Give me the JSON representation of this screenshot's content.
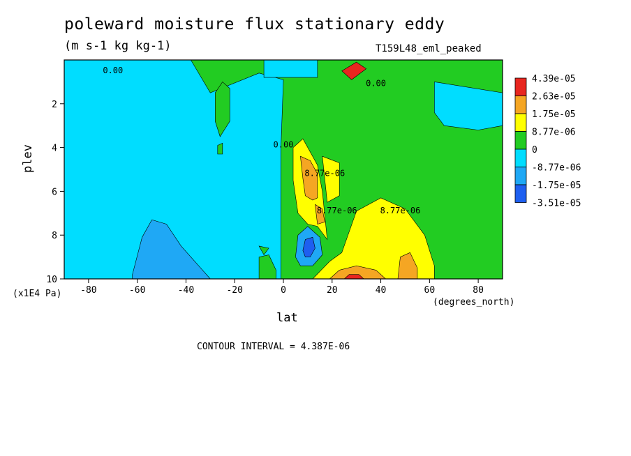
{
  "title": "poleward moisture flux stationary eddy",
  "units": "(m s-1 kg kg-1)",
  "dataset": "T159L48_eml_peaked",
  "contour_interval": "CONTOUR INTERVAL = 4.387E-06",
  "chart_data": {
    "type": "heatmap",
    "xlabel": "lat",
    "x_units": "(degrees_north)",
    "ylabel": "plev",
    "y_units": "(x1E4 Pa)",
    "xlim": [
      -90,
      90
    ],
    "ylim": [
      10,
      0
    ],
    "x_ticks": [
      -80,
      -60,
      -40,
      -20,
      0,
      20,
      40,
      60,
      80
    ],
    "y_ticks": [
      2,
      4,
      6,
      8,
      10
    ],
    "colorbar": {
      "labels": [
        "4.39e-05",
        "2.63e-05",
        "1.75e-05",
        "8.77e-06",
        "0",
        "-8.77e-06",
        "-1.75e-05",
        "-3.51e-05"
      ],
      "colors": [
        "#e8261f",
        "#f5a623",
        "#ffff00",
        "#22cc22",
        "#00ddff",
        "#1fa8f5",
        "#1e5ff0"
      ]
    },
    "contour_labels": [
      {
        "text": "0.00",
        "lat": -70,
        "plev": 0.6
      },
      {
        "text": "0.00",
        "lat": 38,
        "plev": 1.2
      },
      {
        "text": "0.00",
        "lat": 0,
        "plev": 4.0
      },
      {
        "text": "8.77e-06",
        "lat": 17,
        "plev": 5.3
      },
      {
        "text": "8.77e-06",
        "lat": 22,
        "plev": 7.0
      },
      {
        "text": "8.77e-06",
        "lat": 48,
        "plev": 7.0
      }
    ],
    "regions": [
      {
        "level": "-8.77e-06",
        "color": "#00ddff",
        "poly": [
          [
            -90,
            10
          ],
          [
            -90,
            0
          ],
          [
            -38,
            0
          ],
          [
            -30,
            1.5
          ],
          [
            -10,
            0.6
          ],
          [
            0,
            0.9
          ],
          [
            -1,
            4
          ],
          [
            -1,
            10
          ]
        ]
      },
      {
        "level": "-8.77e-06",
        "color": "#00ddff",
        "poly": [
          [
            62,
            1
          ],
          [
            90,
            1.5
          ],
          [
            90,
            3.0
          ],
          [
            80,
            3.2
          ],
          [
            66,
            3.0
          ],
          [
            62,
            2.4
          ]
        ]
      },
      {
        "level": "-8.77e-06",
        "color": "#00ddff",
        "poly": [
          [
            -8,
            0
          ],
          [
            14,
            0
          ],
          [
            14,
            0.8
          ],
          [
            -8,
            0.8
          ]
        ]
      },
      {
        "level": "-1.75e-05",
        "color": "#1fa8f5",
        "poly": [
          [
            -62,
            9.8
          ],
          [
            -58,
            8.1
          ],
          [
            -54,
            7.3
          ],
          [
            -48,
            7.5
          ],
          [
            -42,
            8.5
          ],
          [
            -34,
            9.5
          ],
          [
            -30,
            10
          ],
          [
            -62,
            10
          ]
        ]
      },
      {
        "level": "-1.75e-05",
        "color": "#1fa8f5",
        "poly": [
          [
            5,
            9.0
          ],
          [
            6,
            8.0
          ],
          [
            10,
            7.6
          ],
          [
            15,
            8.1
          ],
          [
            16,
            8.9
          ],
          [
            12,
            9.4
          ],
          [
            7,
            9.4
          ]
        ]
      },
      {
        "level": "-3.51e-05",
        "color": "#1e5ff0",
        "poly": [
          [
            8,
            8.7
          ],
          [
            9,
            8.2
          ],
          [
            12,
            8.1
          ],
          [
            13,
            8.6
          ],
          [
            11,
            9.0
          ],
          [
            9,
            9.0
          ]
        ]
      },
      {
        "level": "8.77e-06",
        "color": "#ffff00",
        "poly": [
          [
            4,
            4.0
          ],
          [
            8,
            3.6
          ],
          [
            14,
            4.8
          ],
          [
            16,
            6.0
          ],
          [
            18,
            8.2
          ],
          [
            14,
            7.6
          ],
          [
            10,
            7.5
          ],
          [
            6,
            7.0
          ],
          [
            4,
            5.5
          ]
        ]
      },
      {
        "level": "8.77e-06",
        "color": "#ffff00",
        "poly": [
          [
            16,
            4.4
          ],
          [
            23,
            4.7
          ],
          [
            23,
            6.2
          ],
          [
            18,
            6.5
          ]
        ]
      },
      {
        "level": "8.77e-06",
        "color": "#ffff00",
        "poly": [
          [
            12,
            10
          ],
          [
            19,
            9.2
          ],
          [
            24,
            8.8
          ],
          [
            30,
            6.9
          ],
          [
            40,
            6.3
          ],
          [
            50,
            6.8
          ],
          [
            58,
            8.0
          ],
          [
            62,
            9.4
          ],
          [
            62,
            10
          ]
        ]
      },
      {
        "level": "1.75e-05",
        "color": "#f5a623",
        "poly": [
          [
            7,
            4.4
          ],
          [
            11,
            4.6
          ],
          [
            14,
            5.2
          ],
          [
            14,
            6.3
          ],
          [
            12,
            6.4
          ],
          [
            9,
            6.2
          ],
          [
            8,
            5.4
          ]
        ]
      },
      {
        "level": "1.75e-05",
        "color": "#f5a623",
        "poly": [
          [
            13,
            6.6
          ],
          [
            16,
            6.8
          ],
          [
            17,
            7.4
          ],
          [
            14,
            7.5
          ]
        ]
      },
      {
        "level": "1.75e-05",
        "color": "#f5a623",
        "poly": [
          [
            47,
            10
          ],
          [
            48,
            9.0
          ],
          [
            52,
            8.8
          ],
          [
            55,
            9.5
          ],
          [
            55,
            10
          ]
        ]
      },
      {
        "level": "1.75e-05",
        "color": "#f5a623",
        "poly": [
          [
            19,
            10
          ],
          [
            23,
            9.6
          ],
          [
            30,
            9.4
          ],
          [
            38,
            9.6
          ],
          [
            42,
            10
          ]
        ]
      },
      {
        "level": "4.39e-05",
        "color": "#e8261f",
        "poly": [
          [
            25,
            10
          ],
          [
            27,
            9.8
          ],
          [
            31,
            9.8
          ],
          [
            33,
            10
          ]
        ]
      },
      {
        "level": "4.39e-05",
        "color": "#e8261f",
        "poly": [
          [
            24,
            0.5
          ],
          [
            30,
            0.1
          ],
          [
            34,
            0.4
          ],
          [
            28,
            0.9
          ]
        ]
      },
      {
        "level": "0",
        "color": "#22cc22",
        "poly": [
          [
            -28,
            1.5
          ],
          [
            -25,
            1.0
          ],
          [
            -22,
            1.3
          ],
          [
            -22,
            2.8
          ],
          [
            -26,
            3.5
          ],
          [
            -28,
            2.8
          ]
        ]
      },
      {
        "level": "0",
        "color": "#22cc22",
        "poly": [
          [
            -27,
            3.9
          ],
          [
            -25,
            3.8
          ],
          [
            -25,
            4.3
          ],
          [
            -27,
            4.3
          ]
        ]
      },
      {
        "level": "0",
        "color": "#22cc22",
        "poly": [
          [
            -10,
            8.5
          ],
          [
            -6,
            8.6
          ],
          [
            -8,
            8.9
          ]
        ]
      },
      {
        "level": "0",
        "color": "#22cc22",
        "poly": [
          [
            -10,
            10
          ],
          [
            -10,
            9.0
          ],
          [
            -6,
            8.9
          ],
          [
            -3,
            9.6
          ],
          [
            -3,
            10
          ]
        ]
      }
    ]
  }
}
